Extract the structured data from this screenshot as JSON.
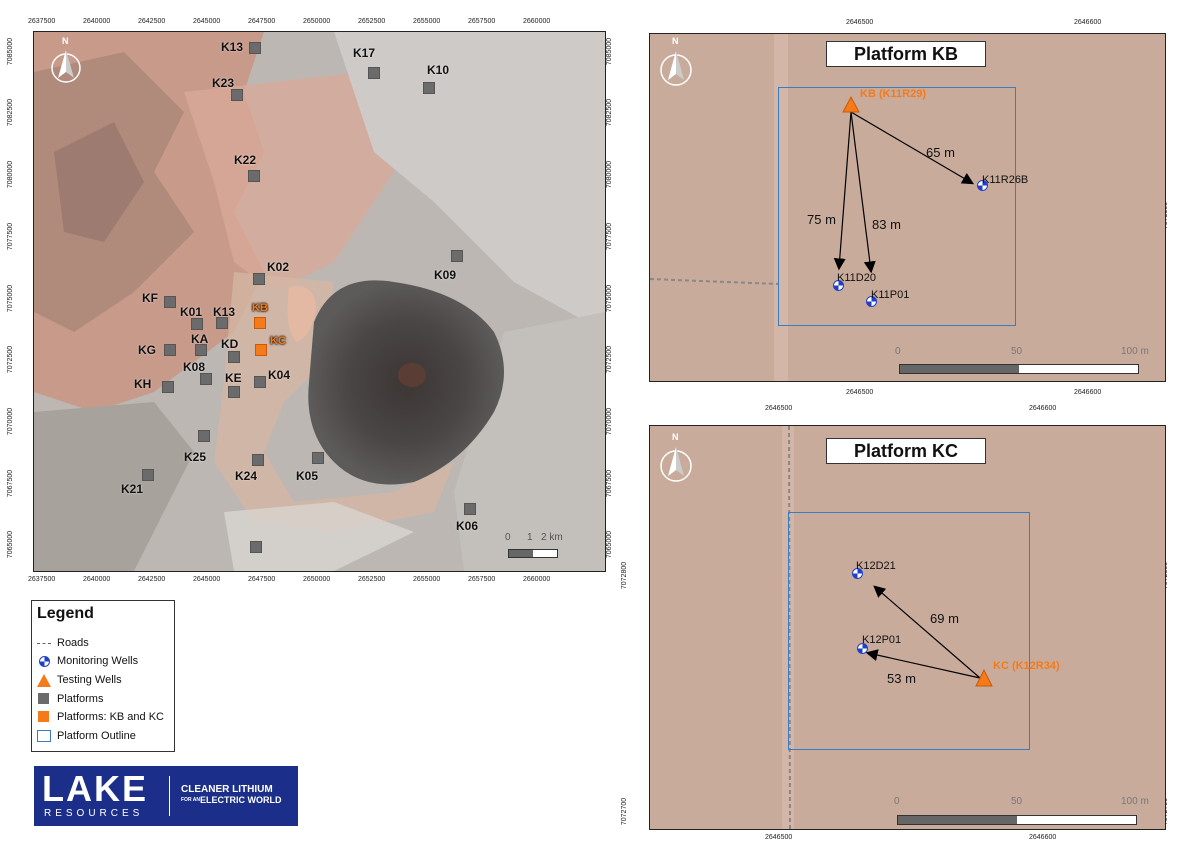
{
  "overview": {
    "x_ticks_top": [
      "2637500",
      "2640000",
      "2642500",
      "2645000",
      "2647500",
      "2650000",
      "2652500",
      "2655000",
      "2657500",
      "2660000"
    ],
    "x_ticks_bottom": [
      "2637500",
      "2640000",
      "2642500",
      "2645000",
      "2647500",
      "2650000",
      "2652500",
      "2655000",
      "2657500",
      "2660000"
    ],
    "y_ticks": [
      "7085000",
      "7082500",
      "7080000",
      "7077500",
      "7075000",
      "7072500",
      "7070000",
      "7067500",
      "7065000"
    ],
    "platforms": [
      {
        "id": "K13",
        "label": "K13"
      },
      {
        "id": "K17",
        "label": "K17"
      },
      {
        "id": "K10",
        "label": "K10"
      },
      {
        "id": "K23",
        "label": "K23"
      },
      {
        "id": "K22",
        "label": "K22"
      },
      {
        "id": "K02",
        "label": "K02"
      },
      {
        "id": "K09",
        "label": "K09"
      },
      {
        "id": "KF",
        "label": "KF"
      },
      {
        "id": "K01",
        "label": "K01"
      },
      {
        "id": "K13b",
        "label": "K13"
      },
      {
        "id": "KA",
        "label": "KA"
      },
      {
        "id": "KD",
        "label": "KD"
      },
      {
        "id": "KG",
        "label": "KG"
      },
      {
        "id": "K08",
        "label": "K08"
      },
      {
        "id": "KE",
        "label": "KE"
      },
      {
        "id": "K04",
        "label": "K04"
      },
      {
        "id": "KH",
        "label": "KH"
      },
      {
        "id": "K25",
        "label": "K25"
      },
      {
        "id": "K24",
        "label": "K24"
      },
      {
        "id": "K05",
        "label": "K05"
      },
      {
        "id": "K21",
        "label": "K21"
      },
      {
        "id": "K06",
        "label": "K06"
      },
      {
        "id": "KB",
        "label": "KB"
      },
      {
        "id": "KC",
        "label": "KC"
      }
    ],
    "scale": {
      "l0": "0",
      "l1": "1",
      "l2": "2 km"
    },
    "north": "N"
  },
  "kb": {
    "title": "Platform KB",
    "x_ticks_top": [
      "2646500",
      "2646600"
    ],
    "x_ticks_bottom": [
      "2646500",
      "2646600"
    ],
    "y_tick_right": "7073900",
    "north": "N",
    "test_well": "KB (K11R29)",
    "wells": [
      "K11R26B",
      "K11D20",
      "K11P01"
    ],
    "distances": [
      "65 m",
      "75 m",
      "83 m"
    ],
    "scale": {
      "l0": "0",
      "l1": "50",
      "l2": "100 m"
    }
  },
  "kc": {
    "title": "Platform KC",
    "x_ticks_top": [
      "2646500",
      "2646600"
    ],
    "x_ticks_bottom": [
      "2646500",
      "2646600"
    ],
    "y_ticks_left": [
      "7072800",
      "7072700"
    ],
    "y_ticks_right": [
      "7072800",
      "7072700"
    ],
    "north": "N",
    "test_well": "KC (K12R34)",
    "wells": [
      "K12D21",
      "K12P01"
    ],
    "distances": [
      "69 m",
      "53 m"
    ],
    "scale": {
      "l0": "0",
      "l1": "50",
      "l2": "100 m"
    }
  },
  "legend": {
    "title": "Legend",
    "items": [
      "Roads",
      "Monitoring Wells",
      "Testing Wells",
      "Platforms",
      "Platforms: KB and KC",
      "Platform Outline"
    ]
  },
  "logo": {
    "name": "LAKE",
    "sub": "RESOURCES",
    "tag1": "CLEANER LITHIUM",
    "tag2a": "FOR AN",
    "tag2b": "ELECTRIC WORLD"
  },
  "colors": {
    "accent_orange": "#f47a1a",
    "outline_blue": "#3a7ec1",
    "logo_blue": "#1b2f8a",
    "platform_grey": "#6b6b6b",
    "well_blue": "#2040c8"
  }
}
